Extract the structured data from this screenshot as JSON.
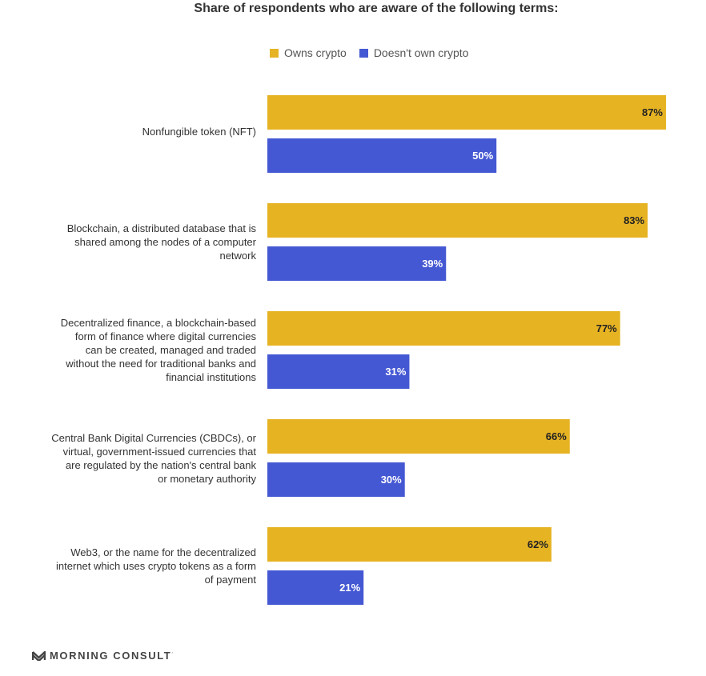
{
  "chart_data": {
    "type": "bar",
    "orientation": "horizontal",
    "title": "Share of respondents who are aware of the following terms:",
    "categories": [
      "Nonfungible token (NFT)",
      "Blockchain, a distributed database that is shared among the nodes of a computer network",
      "Decentralized finance, a blockchain-based form of finance where digital currencies can be created, managed and traded without the need for traditional banks and financial institutions",
      "Central Bank Digital Currencies (CBDCs), or virtual, government-issued currencies that are regulated by the nation's central bank or monetary authority",
      "Web3, or the name for the decentralized internet which uses crypto tokens as a form of payment"
    ],
    "category_lines": [
      [
        "Nonfungible token (NFT)"
      ],
      [
        "Blockchain, a distributed database that is",
        "shared among the nodes of a computer",
        "network"
      ],
      [
        "Decentralized finance, a blockchain-based",
        "form of finance where digital currencies",
        "can be created, managed and traded",
        "without the need for traditional banks and",
        "financial institutions"
      ],
      [
        "Central Bank Digital Currencies (CBDCs), or",
        "virtual, government-issued currencies that",
        "are regulated by the nation's central bank",
        "or monetary authority"
      ],
      [
        "Web3, or the name for the decentralized",
        "internet which uses crypto tokens as a form",
        "of payment"
      ]
    ],
    "series": [
      {
        "name": "Owns crypto",
        "color": "#e6b323",
        "values": [
          87,
          83,
          77,
          66,
          62
        ]
      },
      {
        "name": "Doesn't own crypto",
        "color": "#4558d3",
        "values": [
          50,
          39,
          31,
          30,
          21
        ]
      }
    ],
    "value_suffix": "%",
    "xlim": [
      0,
      87
    ],
    "grid": false,
    "legend_position": "top"
  },
  "branding": {
    "name": "MORNING CONSULT",
    "trademark": "´"
  }
}
